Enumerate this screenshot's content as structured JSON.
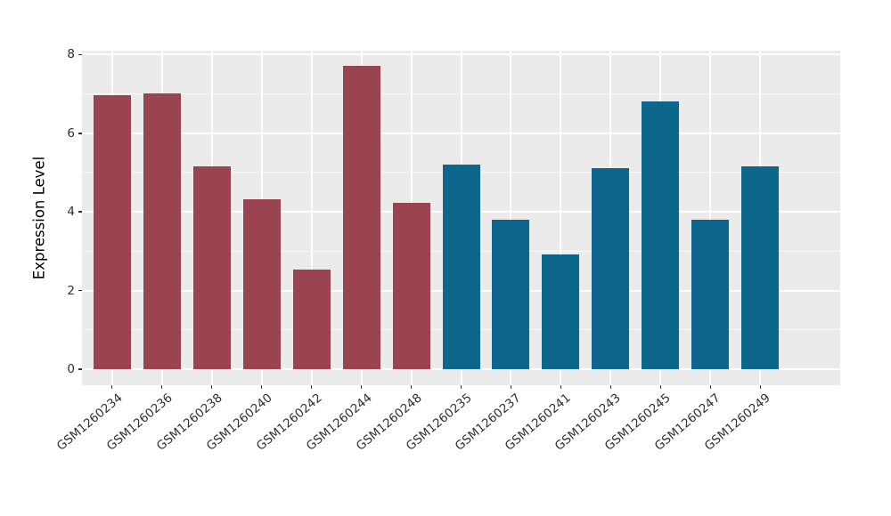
{
  "chart_data": {
    "type": "bar",
    "title": "",
    "ylabel": "Expression Level",
    "xlabel": "",
    "categories": [
      "GSM1260234",
      "GSM1260236",
      "GSM1260238",
      "GSM1260240",
      "GSM1260242",
      "GSM1260244",
      "GSM1260248",
      "GSM1260235",
      "GSM1260237",
      "GSM1260241",
      "GSM1260243",
      "GSM1260245",
      "GSM1260247",
      "GSM1260249"
    ],
    "values": [
      6.97,
      7.02,
      5.16,
      4.31,
      2.54,
      7.72,
      4.24,
      5.2,
      3.79,
      2.92,
      5.11,
      6.81,
      3.81,
      5.16
    ],
    "bar_colors": [
      "#9a4451",
      "#9a4451",
      "#9a4451",
      "#9a4451",
      "#9a4451",
      "#9a4451",
      "#9a4451",
      "#0d678c",
      "#0d678c",
      "#0d678c",
      "#0d678c",
      "#0d678c",
      "#0d678c",
      "#0d678c"
    ],
    "group_colors": {
      "maroon_group": "#9a4451",
      "teal_group": "#0d678c"
    },
    "yticks": [
      0,
      2,
      4,
      6,
      8
    ],
    "minor_yticks": [
      1,
      3,
      5,
      7
    ],
    "ylim": [
      -0.41,
      8.1
    ],
    "panel_background": "#ebebeb",
    "grid_color": "#ffffff",
    "tick_mark_color": "#333333",
    "axis_text_color": "#303030",
    "x_tick_label_rotation_deg": 40,
    "legend": "none",
    "grid": "major and minor horizontal, major vertical at bar centers"
  }
}
